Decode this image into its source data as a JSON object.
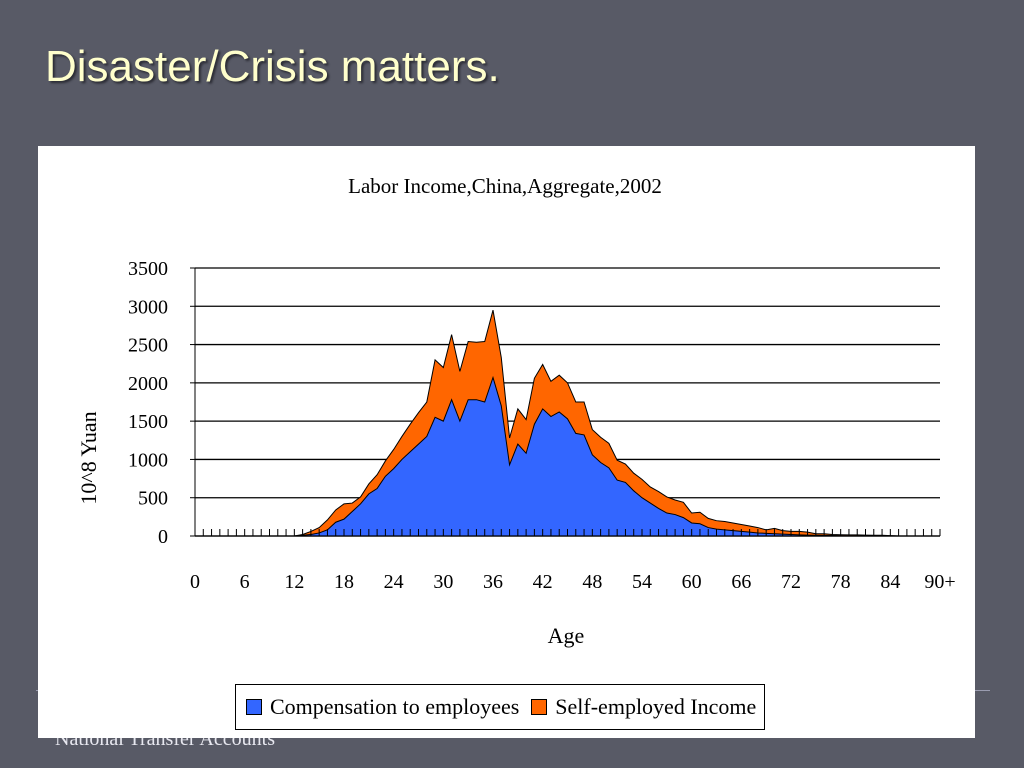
{
  "slide": {
    "title": "Disaster/Crisis matters.",
    "footer": "National Transfer Accounts"
  },
  "chart_data": {
    "type": "area",
    "stacked": true,
    "title": "Labor Income,China,Aggregate,2002",
    "xlabel": "Age",
    "ylabel": "10^8 Yuan",
    "ylim": [
      0,
      3500
    ],
    "yticks": [
      0,
      500,
      1000,
      1500,
      2000,
      2500,
      3000,
      3500
    ],
    "xtick_labels": [
      "0",
      "6",
      "12",
      "18",
      "24",
      "30",
      "36",
      "42",
      "48",
      "54",
      "60",
      "66",
      "72",
      "78",
      "84",
      "90+"
    ],
    "grid": "horizontal",
    "legend_position": "bottom",
    "x": [
      0,
      1,
      2,
      3,
      4,
      5,
      6,
      7,
      8,
      9,
      10,
      11,
      12,
      13,
      14,
      15,
      16,
      17,
      18,
      19,
      20,
      21,
      22,
      23,
      24,
      25,
      26,
      27,
      28,
      29,
      30,
      31,
      32,
      33,
      34,
      35,
      36,
      37,
      38,
      39,
      40,
      41,
      42,
      43,
      44,
      45,
      46,
      47,
      48,
      49,
      50,
      51,
      52,
      53,
      54,
      55,
      56,
      57,
      58,
      59,
      60,
      61,
      62,
      63,
      64,
      65,
      66,
      67,
      68,
      69,
      70,
      71,
      72,
      73,
      74,
      75,
      76,
      77,
      78,
      79,
      80,
      81,
      82,
      83,
      84,
      85,
      86,
      87,
      88,
      89,
      90
    ],
    "series": [
      {
        "name": "Compensation to employees",
        "color": "#3366ff",
        "values": [
          0,
          0,
          0,
          0,
          0,
          0,
          0,
          0,
          0,
          0,
          0,
          0,
          0,
          10,
          20,
          40,
          80,
          180,
          220,
          320,
          420,
          550,
          620,
          780,
          880,
          1000,
          1100,
          1200,
          1300,
          1550,
          1500,
          1780,
          1500,
          1780,
          1780,
          1750,
          2070,
          1700,
          930,
          1200,
          1080,
          1460,
          1660,
          1560,
          1620,
          1530,
          1340,
          1320,
          1060,
          960,
          890,
          730,
          700,
          590,
          500,
          430,
          360,
          300,
          280,
          240,
          170,
          160,
          110,
          90,
          80,
          70,
          60,
          50,
          40,
          35,
          30,
          25,
          20,
          15,
          12,
          10,
          8,
          6,
          5,
          4,
          3,
          2,
          2,
          1,
          1,
          0,
          0,
          0,
          0,
          0,
          0
        ]
      },
      {
        "name": "Self-employed Income",
        "color": "#ff6600",
        "values": [
          0,
          0,
          0,
          0,
          0,
          0,
          0,
          0,
          0,
          0,
          0,
          0,
          0,
          10,
          40,
          70,
          130,
          160,
          200,
          110,
          90,
          130,
          180,
          200,
          250,
          300,
          360,
          410,
          450,
          750,
          700,
          850,
          650,
          760,
          750,
          790,
          880,
          630,
          350,
          460,
          440,
          600,
          580,
          460,
          480,
          470,
          410,
          430,
          330,
          330,
          320,
          260,
          240,
          230,
          240,
          210,
          220,
          210,
          190,
          200,
          130,
          150,
          120,
          110,
          110,
          100,
          90,
          80,
          70,
          45,
          70,
          45,
          40,
          45,
          38,
          20,
          22,
          14,
          12,
          11,
          12,
          10,
          8,
          9,
          4,
          0,
          0,
          0,
          0,
          0,
          0
        ]
      }
    ]
  }
}
